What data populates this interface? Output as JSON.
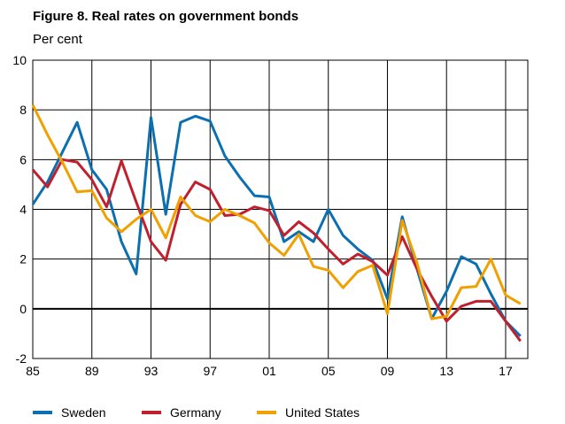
{
  "chart_data": {
    "type": "line",
    "title": "Figure 8. Real rates on government bonds",
    "subtitle": "Per cent",
    "xlabel": "",
    "ylabel": "",
    "ylim": [
      -2,
      10
    ],
    "xlim": [
      1985,
      2018.5
    ],
    "x_ticks": [
      1985,
      1989,
      1993,
      1997,
      2001,
      2005,
      2009,
      2013,
      2017
    ],
    "x_tick_labels": [
      "85",
      "89",
      "93",
      "97",
      "01",
      "05",
      "09",
      "13",
      "17"
    ],
    "y_ticks": [
      -2,
      0,
      2,
      4,
      6,
      8,
      10
    ],
    "y_tick_labels": [
      "-2",
      "0",
      "2",
      "4",
      "6",
      "8",
      "10"
    ],
    "grid": true,
    "legend_position": "bottom",
    "x": [
      1985,
      1986,
      1987,
      1988,
      1989,
      1990,
      1991,
      1992,
      1993,
      1994,
      1995,
      1996,
      1997,
      1998,
      1999,
      2000,
      2001,
      2002,
      2003,
      2004,
      2005,
      2006,
      2007,
      2008,
      2009,
      2010,
      2011,
      2012,
      2013,
      2014,
      2015,
      2016,
      2017,
      2018
    ],
    "series": [
      {
        "name": "Sweden",
        "color": "#0b6fb0",
        "values": [
          4.2,
          5.1,
          6.3,
          7.5,
          5.6,
          4.8,
          2.7,
          1.4,
          7.7,
          3.8,
          7.5,
          7.75,
          7.55,
          6.15,
          5.3,
          4.55,
          4.5,
          2.7,
          3.1,
          2.7,
          4.0,
          2.95,
          2.4,
          1.95,
          0.4,
          3.7,
          1.6,
          -0.4,
          0.7,
          2.1,
          1.8,
          0.6,
          -0.5,
          -1.1
        ]
      },
      {
        "name": "Germany",
        "color": "#c0202e",
        "values": [
          5.6,
          4.9,
          6.0,
          5.9,
          5.2,
          4.1,
          5.95,
          4.3,
          2.7,
          1.95,
          4.2,
          5.1,
          4.8,
          3.75,
          3.8,
          4.1,
          3.95,
          2.95,
          3.5,
          3.05,
          2.4,
          1.8,
          2.2,
          1.9,
          1.35,
          2.9,
          1.6,
          0.5,
          -0.5,
          0.1,
          0.3,
          0.3,
          -0.5,
          -1.3
        ]
      },
      {
        "name": "United States",
        "color": "#f0a000",
        "values": [
          8.2,
          7.0,
          5.9,
          4.7,
          4.75,
          3.65,
          3.1,
          3.6,
          4.0,
          2.85,
          4.5,
          3.75,
          3.5,
          4.0,
          3.75,
          3.45,
          2.65,
          2.15,
          3.0,
          1.7,
          1.55,
          0.85,
          1.5,
          1.75,
          -0.2,
          3.55,
          1.85,
          -0.4,
          -0.3,
          0.85,
          0.9,
          2.0,
          0.55,
          0.2
        ]
      }
    ]
  }
}
